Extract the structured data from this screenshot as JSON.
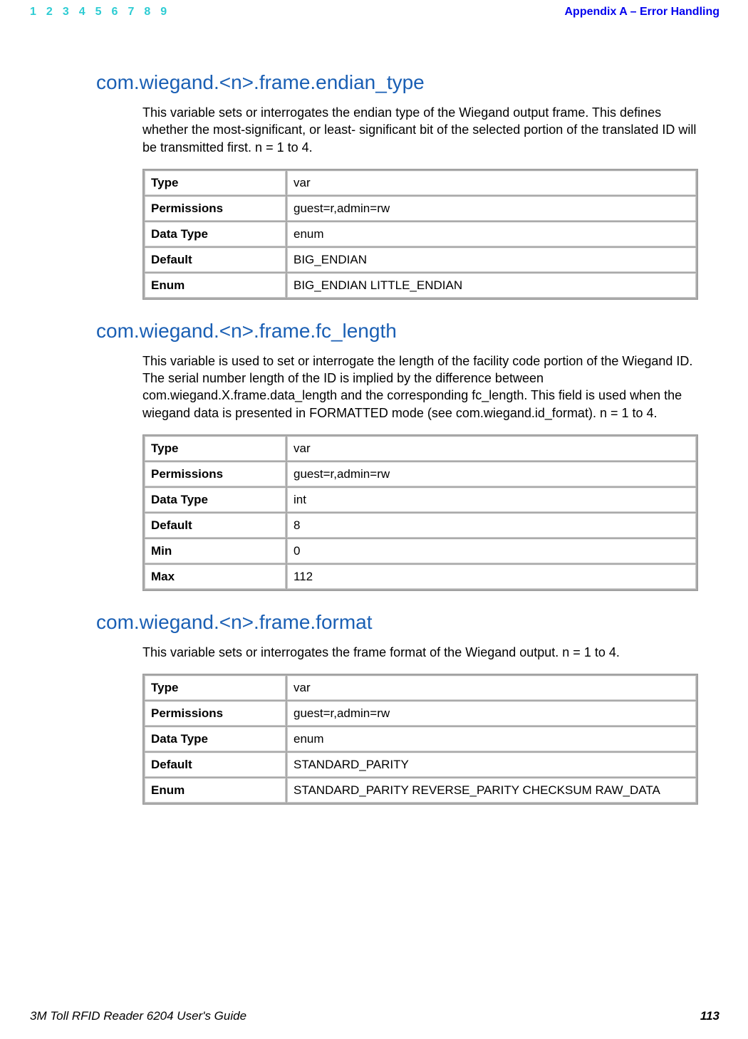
{
  "header": {
    "nav": [
      "1",
      "2",
      "3",
      "4",
      "5",
      "6",
      "7",
      "8",
      "9"
    ],
    "appendix": "Appendix A – Error Handling"
  },
  "sections": [
    {
      "heading": "com.wiegand.<n>.frame.endian_type",
      "desc": "This variable sets or interrogates the endian type of the Wiegand output frame. This defines whether the most-significant, or least- significant bit of the selected portion of the translated ID will be transmitted first. n = 1 to 4.",
      "rows": [
        {
          "label": "Type",
          "value": "var"
        },
        {
          "label": "Permissions",
          "value": "guest=r,admin=rw"
        },
        {
          "label": "Data Type",
          "value": "enum"
        },
        {
          "label": "Default",
          "value": "BIG_ENDIAN"
        },
        {
          "label": "Enum",
          "value": "BIG_ENDIAN LITTLE_ENDIAN"
        }
      ]
    },
    {
      "heading": "com.wiegand.<n>.frame.fc_length",
      "desc": "This variable is used to set or interrogate the length of the facility code portion of the Wiegand ID. The serial number length of the ID is implied by the difference between com.wiegand.X.frame.data_length and the corresponding fc_length. This field is used when the wiegand data is presented in FORMATTED mode (see com.wiegand.id_format). n = 1 to 4.",
      "rows": [
        {
          "label": "Type",
          "value": "var"
        },
        {
          "label": "Permissions",
          "value": "guest=r,admin=rw"
        },
        {
          "label": "Data Type",
          "value": "int"
        },
        {
          "label": "Default",
          "value": "8"
        },
        {
          "label": "Min",
          "value": "0"
        },
        {
          "label": "Max",
          "value": "112"
        }
      ]
    },
    {
      "heading": "com.wiegand.<n>.frame.format",
      "desc": "This variable sets or interrogates the frame format of the Wiegand output. n = 1 to 4.",
      "rows": [
        {
          "label": "Type",
          "value": "var"
        },
        {
          "label": "Permissions",
          "value": "guest=r,admin=rw"
        },
        {
          "label": "Data Type",
          "value": "enum"
        },
        {
          "label": "Default",
          "value": "STANDARD_PARITY"
        },
        {
          "label": "Enum",
          "value": "STANDARD_PARITY REVERSE_PARITY CHECKSUM RAW_DATA"
        }
      ]
    }
  ],
  "footer": {
    "title": "3M Toll RFID Reader 6204 User's Guide",
    "page": "113"
  }
}
